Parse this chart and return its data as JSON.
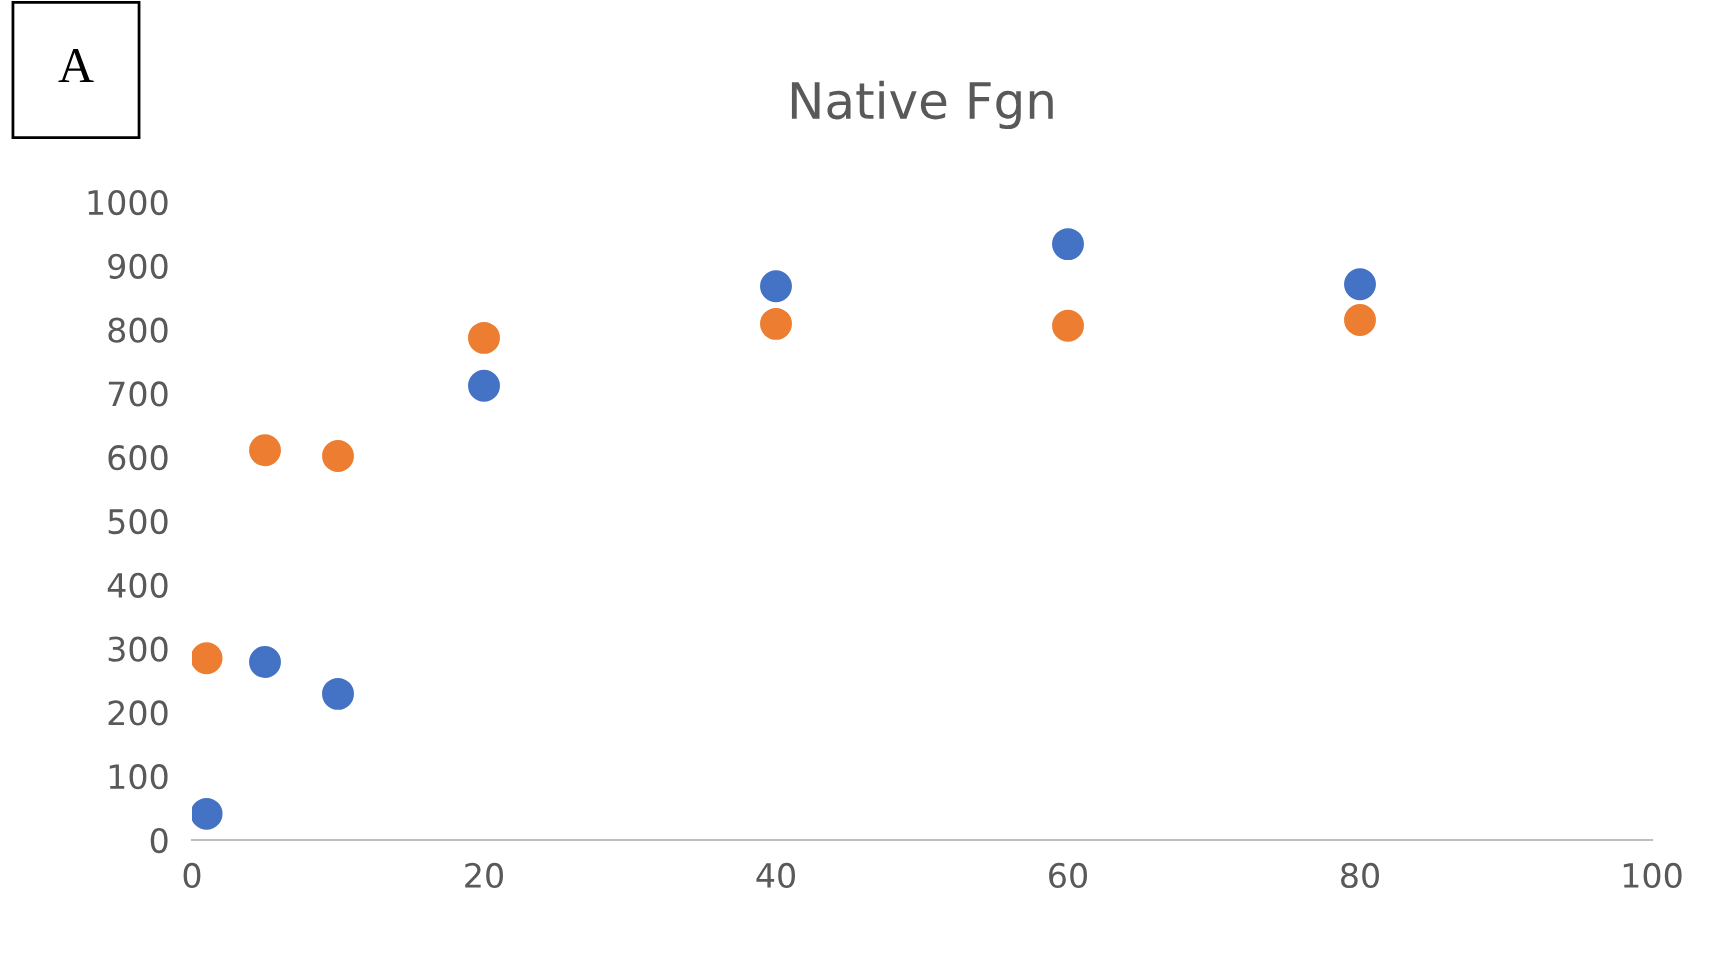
{
  "chart_data": {
    "type": "scatter",
    "title": "Native Fgn",
    "annotations": [
      "A"
    ],
    "x": [
      1,
      5,
      10,
      20,
      40,
      60,
      80
    ],
    "series": [
      {
        "color": "#4472c4",
        "values": [
          41,
          279,
          229,
          712,
          868,
          934,
          871
        ]
      },
      {
        "color": "#ed7d31",
        "values": [
          285,
          611,
          602,
          787,
          809,
          806,
          815
        ]
      }
    ],
    "xlim": [
      0,
      100
    ],
    "xticks": [
      0,
      20,
      40,
      60,
      80,
      100
    ],
    "ylim": [
      0,
      1000
    ],
    "yticks": [
      0,
      100,
      200,
      300,
      400,
      500,
      600,
      700,
      800,
      900,
      1000
    ],
    "grid": false,
    "legend": false,
    "marker": "circle"
  }
}
